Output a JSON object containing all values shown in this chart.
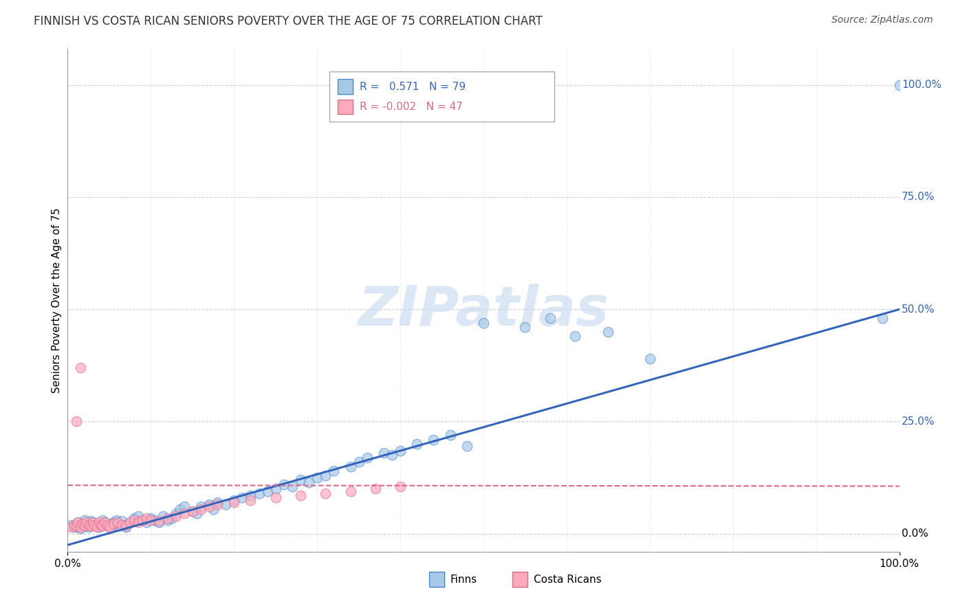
{
  "title": "FINNISH VS COSTA RICAN SENIORS POVERTY OVER THE AGE OF 75 CORRELATION CHART",
  "source": "Source: ZipAtlas.com",
  "ylabel": "Seniors Poverty Over the Age of 75",
  "xlim": [
    0.0,
    1.0
  ],
  "ylim": [
    -0.04,
    1.08
  ],
  "finn_color": "#a8c8e8",
  "finn_edge_color": "#4488cc",
  "cr_color": "#ffaabc",
  "cr_edge_color": "#dd6688",
  "finn_trend_color": "#3366bb",
  "cr_trend_color": "#dd6688",
  "grid_color": "#cccccc",
  "background_color": "#ffffff",
  "watermark_color": "#ccddf0",
  "title_fontsize": 12,
  "tick_fontsize": 11,
  "source_fontsize": 10,
  "ylabel_fontsize": 11,
  "finns_x": [
    0.005,
    0.008,
    0.01,
    0.012,
    0.015,
    0.018,
    0.02,
    0.022,
    0.025,
    0.028,
    0.03,
    0.032,
    0.035,
    0.038,
    0.04,
    0.042,
    0.045,
    0.048,
    0.05,
    0.052,
    0.055,
    0.058,
    0.06,
    0.062,
    0.065,
    0.068,
    0.07,
    0.075,
    0.08,
    0.085,
    0.09,
    0.095,
    0.1,
    0.105,
    0.11,
    0.115,
    0.12,
    0.125,
    0.13,
    0.135,
    0.14,
    0.15,
    0.155,
    0.16,
    0.17,
    0.175,
    0.18,
    0.19,
    0.2,
    0.21,
    0.22,
    0.23,
    0.24,
    0.25,
    0.26,
    0.27,
    0.28,
    0.29,
    0.3,
    0.31,
    0.32,
    0.34,
    0.35,
    0.36,
    0.38,
    0.39,
    0.4,
    0.42,
    0.44,
    0.46,
    0.48,
    0.5,
    0.55,
    0.58,
    0.61,
    0.65,
    0.7,
    0.98,
    1.0
  ],
  "finns_y": [
    0.02,
    0.015,
    0.018,
    0.025,
    0.012,
    0.022,
    0.03,
    0.018,
    0.015,
    0.028,
    0.025,
    0.02,
    0.018,
    0.015,
    0.022,
    0.03,
    0.025,
    0.018,
    0.02,
    0.015,
    0.025,
    0.03,
    0.022,
    0.018,
    0.028,
    0.02,
    0.015,
    0.025,
    0.035,
    0.04,
    0.03,
    0.025,
    0.035,
    0.03,
    0.025,
    0.04,
    0.03,
    0.035,
    0.045,
    0.055,
    0.06,
    0.05,
    0.045,
    0.06,
    0.065,
    0.055,
    0.07,
    0.065,
    0.075,
    0.08,
    0.085,
    0.09,
    0.095,
    0.1,
    0.11,
    0.105,
    0.12,
    0.115,
    0.125,
    0.13,
    0.14,
    0.15,
    0.16,
    0.17,
    0.18,
    0.175,
    0.185,
    0.2,
    0.21,
    0.22,
    0.195,
    0.47,
    0.46,
    0.48,
    0.44,
    0.45,
    0.39,
    0.48,
    1.0
  ],
  "costa_ricans_x": [
    0.005,
    0.008,
    0.01,
    0.012,
    0.015,
    0.018,
    0.02,
    0.022,
    0.025,
    0.028,
    0.03,
    0.032,
    0.035,
    0.038,
    0.04,
    0.042,
    0.045,
    0.048,
    0.05,
    0.055,
    0.06,
    0.065,
    0.07,
    0.075,
    0.08,
    0.085,
    0.09,
    0.095,
    0.1,
    0.11,
    0.12,
    0.13,
    0.14,
    0.15,
    0.16,
    0.17,
    0.18,
    0.2,
    0.22,
    0.25,
    0.28,
    0.31,
    0.34,
    0.37,
    0.4,
    0.01,
    0.015
  ],
  "costa_ricans_y": [
    0.015,
    0.02,
    0.018,
    0.025,
    0.015,
    0.022,
    0.018,
    0.025,
    0.02,
    0.018,
    0.025,
    0.02,
    0.015,
    0.025,
    0.02,
    0.018,
    0.025,
    0.02,
    0.015,
    0.022,
    0.025,
    0.02,
    0.018,
    0.025,
    0.03,
    0.025,
    0.03,
    0.035,
    0.03,
    0.028,
    0.035,
    0.04,
    0.045,
    0.05,
    0.055,
    0.06,
    0.065,
    0.07,
    0.075,
    0.08,
    0.085,
    0.09,
    0.095,
    0.1,
    0.105,
    0.25,
    0.37
  ],
  "finn_trend_x": [
    0.0,
    1.0
  ],
  "finn_trend_y": [
    -0.025,
    0.5
  ],
  "cr_trend_x": [
    0.0,
    1.0
  ],
  "cr_trend_y": [
    0.108,
    0.106
  ]
}
